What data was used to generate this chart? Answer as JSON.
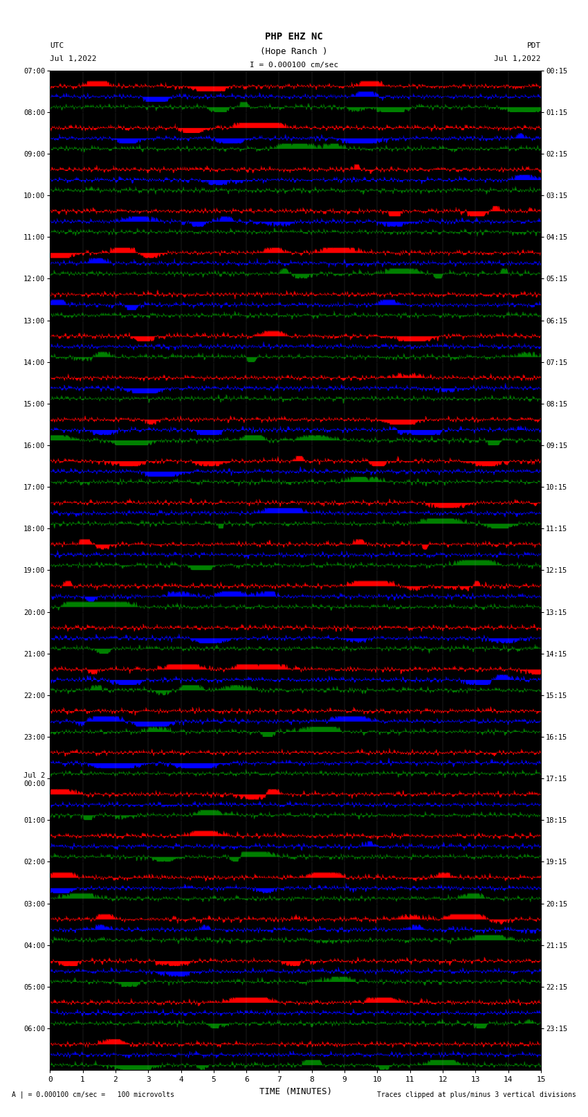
{
  "title_line1": "PHP EHZ NC",
  "title_line2": "(Hope Ranch )",
  "scale_label": "I = 0.000100 cm/sec",
  "left_date_label": "UTC\nJul 1,2022",
  "right_date_label": "PDT\nJul 1,2022",
  "bottom_note1": "A | = 0.000100 cm/sec =   100 microvolts",
  "bottom_note2": "Traces clipped at plus/minus 3 vertical divisions",
  "xlabel": "TIME (MINUTES)",
  "left_times": [
    "07:00",
    "08:00",
    "09:00",
    "10:00",
    "11:00",
    "12:00",
    "13:00",
    "14:00",
    "15:00",
    "16:00",
    "17:00",
    "18:00",
    "19:00",
    "20:00",
    "21:00",
    "22:00",
    "23:00",
    "Jul 2\n00:00",
    "01:00",
    "02:00",
    "03:00",
    "04:00",
    "05:00",
    "06:00"
  ],
  "right_times": [
    "00:15",
    "01:15",
    "02:15",
    "03:15",
    "04:15",
    "05:15",
    "06:15",
    "07:15",
    "08:15",
    "09:15",
    "10:15",
    "11:15",
    "12:15",
    "13:15",
    "14:15",
    "15:15",
    "16:15",
    "17:15",
    "18:15",
    "19:15",
    "20:15",
    "21:15",
    "22:15",
    "23:15"
  ],
  "num_rows": 24,
  "colors": [
    "black",
    "red",
    "blue",
    "green"
  ],
  "bg_color": "white",
  "seed": 42,
  "n_samples": 3000,
  "noise_std": 0.7,
  "smooth_kernel": 8,
  "clip_val": 1.0,
  "fill_scale": 0.48,
  "traces_per_row": 4
}
